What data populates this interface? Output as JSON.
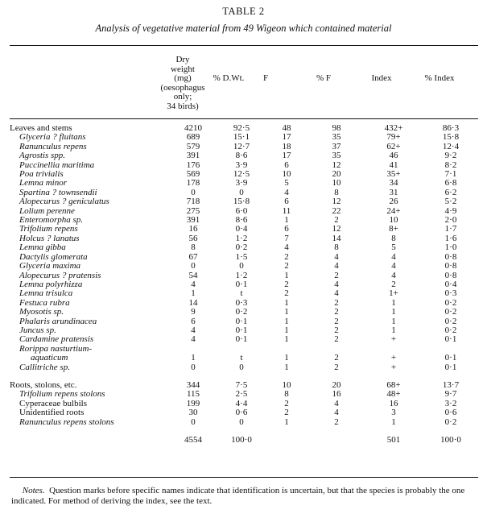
{
  "table_label": "TABLE 2",
  "table_caption": "Analysis of vegetative material from 49 Wigeon which contained material",
  "headers": {
    "dry_weight": [
      "Dry",
      "weight",
      "(mg)",
      "(oesophagus only;",
      "34 birds)"
    ],
    "pct_dwt": "% D.Wt.",
    "f": "F",
    "pct_f": "% F",
    "index": "Index",
    "pct_index": "% Index"
  },
  "rows": [
    {
      "name": "Leaves and stems",
      "style": "group",
      "v": [
        "4210",
        "92·5",
        "48",
        "98",
        "432+",
        "86·3"
      ]
    },
    {
      "name": "Glyceria ? fluitans",
      "style": "species",
      "v": [
        "689",
        "15·1",
        "17",
        "35",
        "79+",
        "15·8"
      ]
    },
    {
      "name": "Ranunculus repens",
      "style": "species",
      "v": [
        "579",
        "12·7",
        "18",
        "37",
        "62+",
        "12·4"
      ]
    },
    {
      "name": "Agrostis  spp.",
      "style": "species",
      "v": [
        "391",
        "8·6",
        "17",
        "35",
        "46",
        "9·2"
      ]
    },
    {
      "name": "Puccinellia maritima",
      "style": "species",
      "v": [
        "176",
        "3·9",
        "6",
        "12",
        "41",
        "8·2"
      ]
    },
    {
      "name": "Poa trivialis",
      "style": "species",
      "v": [
        "569",
        "12·5",
        "10",
        "20",
        "35+",
        "7·1"
      ]
    },
    {
      "name": "Lemna minor",
      "style": "species",
      "v": [
        "178",
        "3·9",
        "5",
        "10",
        "34",
        "6·8"
      ]
    },
    {
      "name": "Spartina ? townsendii",
      "style": "species",
      "v": [
        "0",
        "0",
        "4",
        "8",
        "31",
        "6·2"
      ]
    },
    {
      "name": "Alopecurus ? geniculatus",
      "style": "species",
      "v": [
        "718",
        "15·8",
        "6",
        "12",
        "26",
        "5·2"
      ]
    },
    {
      "name": "Lolium perenne",
      "style": "species",
      "v": [
        "275",
        "6·0",
        "11",
        "22",
        "24+",
        "4·9"
      ]
    },
    {
      "name": "Enteromorpha sp.",
      "style": "species",
      "v": [
        "391",
        "8·6",
        "1",
        "2",
        "10",
        "2·0"
      ]
    },
    {
      "name": "Trifolium repens",
      "style": "species",
      "v": [
        "16",
        "0·4",
        "6",
        "12",
        "8+",
        "1·7"
      ]
    },
    {
      "name": "Holcus ? lanatus",
      "style": "species",
      "v": [
        "56",
        "1·2",
        "7",
        "14",
        "8",
        "1·6"
      ]
    },
    {
      "name": "Lemna gibba",
      "style": "species",
      "v": [
        "8",
        "0·2",
        "4",
        "8",
        "5",
        "1·0"
      ]
    },
    {
      "name": "Dactylis glomerata",
      "style": "species",
      "v": [
        "67",
        "1·5",
        "2",
        "4",
        "4",
        "0·8"
      ]
    },
    {
      "name": "Glyceria maxima",
      "style": "species",
      "v": [
        "0",
        "0",
        "2",
        "4",
        "4",
        "0·8"
      ]
    },
    {
      "name": "Alopecurus ? pratensis",
      "style": "species",
      "v": [
        "54",
        "1·2",
        "1",
        "2",
        "4",
        "0·8"
      ]
    },
    {
      "name": "Lemna polyrhizza",
      "style": "species",
      "v": [
        "4",
        "0·1",
        "2",
        "4",
        "2",
        "0·4"
      ]
    },
    {
      "name": "Lemna trisulca",
      "style": "species",
      "v": [
        "1",
        "t",
        "2",
        "4",
        "1+",
        "0·3"
      ]
    },
    {
      "name": "Festuca rubra",
      "style": "species",
      "v": [
        "14",
        "0·3",
        "1",
        "2",
        "1",
        "0·2"
      ]
    },
    {
      "name": "Myosotis sp.",
      "style": "species",
      "v": [
        "9",
        "0·2",
        "1",
        "2",
        "1",
        "0·2"
      ]
    },
    {
      "name": "Phalaris arundinacea",
      "style": "species",
      "v": [
        "6",
        "0·1",
        "1",
        "2",
        "1",
        "0·2"
      ]
    },
    {
      "name": "Juncus sp.",
      "style": "species",
      "v": [
        "4",
        "0·1",
        "1",
        "2",
        "1",
        "0·2"
      ]
    },
    {
      "name": "Cardamine pratensis",
      "style": "species",
      "v": [
        "4",
        "0·1",
        "1",
        "2",
        "+",
        "0·1"
      ]
    },
    {
      "name": "Rorippa nasturtium-",
      "style": "species",
      "v": [
        "",
        "",
        "",
        "",
        "",
        ""
      ]
    },
    {
      "name": "aquaticum",
      "style": "cont",
      "v": [
        "1",
        "t",
        "1",
        "2",
        "+",
        "0·1"
      ]
    },
    {
      "name": "Callitriche sp.",
      "style": "species",
      "v": [
        "0",
        "0",
        "1",
        "2",
        "+",
        "0·1"
      ]
    },
    {
      "name": "",
      "style": "gap",
      "v": [
        "",
        "",
        "",
        "",
        "",
        ""
      ]
    },
    {
      "name": "Roots, stolons, etc.",
      "style": "group",
      "v": [
        "344",
        "7·5",
        "10",
        "20",
        "68+",
        "13·7"
      ]
    },
    {
      "name": "Trifolium repens stolons",
      "style": "species",
      "v": [
        "115",
        "2·5",
        "8",
        "16",
        "48+",
        "9·7"
      ]
    },
    {
      "name": "Cyperaceae bulbils",
      "style": "species-plain",
      "v": [
        "199",
        "4·4",
        "2",
        "4",
        "16",
        "3·2"
      ]
    },
    {
      "name": "Unidentified roots",
      "style": "species-plain",
      "v": [
        "30",
        "0·6",
        "2",
        "4",
        "3",
        "0·6"
      ]
    },
    {
      "name": "Ranunculus repens stolons",
      "style": "species",
      "v": [
        "0",
        "0",
        "1",
        "2",
        "1",
        "0·2"
      ]
    },
    {
      "name": "",
      "style": "gap",
      "v": [
        "",
        "",
        "",
        "",
        "",
        ""
      ]
    },
    {
      "name": "",
      "style": "total",
      "v": [
        "4554",
        "100·0",
        "",
        "",
        "501",
        "100·0"
      ]
    }
  ],
  "notes": {
    "label": "Notes.",
    "text": "Question marks before specific names indicate that identification is uncertain, but that the species is probably the one indicated.  For method of deriving the index, see the text."
  }
}
